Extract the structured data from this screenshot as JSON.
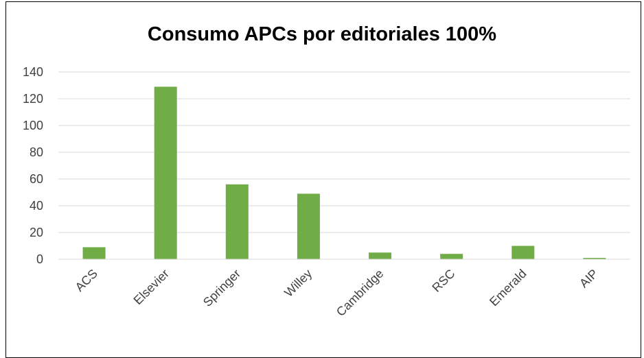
{
  "chart_data": {
    "type": "bar",
    "title": "Consumo APCs por editoriales 100%",
    "xlabel": "",
    "ylabel": "",
    "categories": [
      "ACS",
      "Elsevier",
      "Springer",
      "Willey",
      "Cambridge",
      "RSC",
      "Emerald",
      "AIP"
    ],
    "values": [
      9,
      129,
      56,
      49,
      5,
      4,
      10,
      1
    ],
    "ylim": [
      0,
      140
    ],
    "yticks": [
      "0",
      "20",
      "40",
      "60",
      "80",
      "100",
      "120",
      "140"
    ],
    "grid": true,
    "legend": "none",
    "bar_color": "#70ad47",
    "grid_color": "#d9d9d9",
    "axis_color": "#d9d9d9"
  }
}
